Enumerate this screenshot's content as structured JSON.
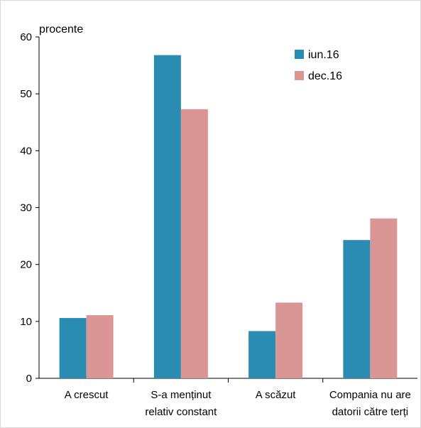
{
  "chart_data": {
    "type": "bar",
    "title": "",
    "ylabel": "procente",
    "xlabel": "",
    "ylim": [
      0,
      60
    ],
    "yticks": [
      0,
      10,
      20,
      30,
      40,
      50,
      60
    ],
    "grid": false,
    "legend_position": "top-right",
    "categories": [
      [
        "A crescut"
      ],
      [
        "S-a menținut",
        "relativ constant"
      ],
      [
        "A scăzut"
      ],
      [
        "Compania nu are",
        "datorii către terți"
      ]
    ],
    "series": [
      {
        "name": "iun.16",
        "color": "#2b8cb3",
        "values": [
          10.6,
          56.8,
          8.3,
          24.3
        ]
      },
      {
        "name": "dec.16",
        "color": "#d99694",
        "values": [
          11.1,
          47.3,
          13.3,
          28.1
        ]
      }
    ]
  }
}
